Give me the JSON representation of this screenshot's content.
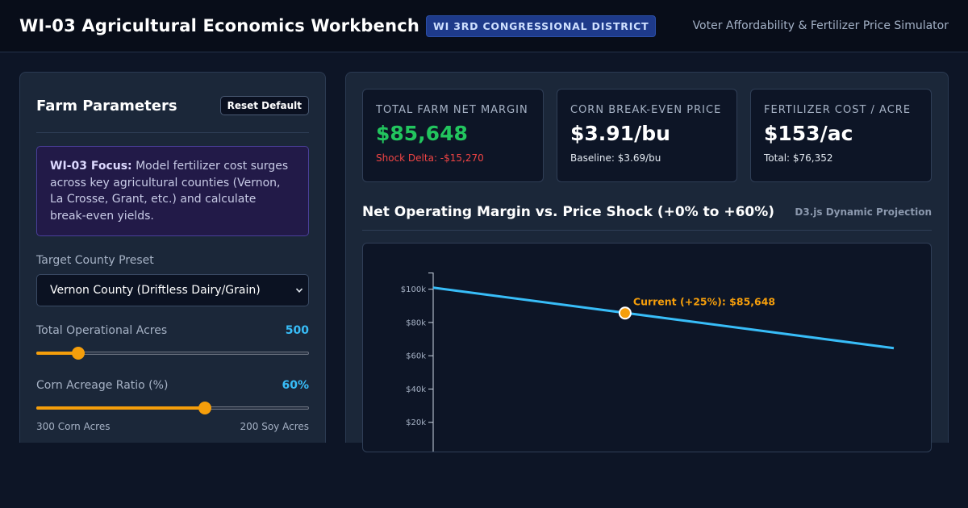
{
  "header": {
    "title": "WI-03 Agricultural Economics Workbench",
    "badge": "WI 3RD CONGRESSIONAL DISTRICT",
    "subtitle": "Voter Affordability & Fertilizer Price Simulator"
  },
  "params": {
    "title": "Farm Parameters",
    "reset_label": "Reset Default",
    "focus_lead": "WI-03 Focus:",
    "focus_text": " Model fertilizer cost surges across key agricultural counties (Vernon, La Crosse, Grant, etc.) and calculate break-even yields.",
    "preset_label": "Target County Preset",
    "preset_value": "Vernon County (Driftless Dairy/Grain)",
    "acres_label": "Total Operational Acres",
    "acres_value": "500",
    "acres_fraction": 0.155,
    "corn_label": "Corn Acreage Ratio (%)",
    "corn_value": "60%",
    "corn_fraction": 0.618,
    "corn_acres": "300 Corn Acres",
    "soy_acres": "200 Soy Acres"
  },
  "kpis": [
    {
      "label": "TOTAL FARM NET MARGIN",
      "value": "$85,648",
      "sub": "Shock Delta: -$15,270"
    },
    {
      "label": "CORN BREAK-EVEN PRICE",
      "value": "$3.91/bu",
      "sub": "Baseline: $3.69/bu"
    },
    {
      "label": "FERTILIZER COST / ACRE",
      "value": "$153/ac",
      "sub": "Total: $76,352"
    }
  ],
  "chart": {
    "heading": "Net Operating Margin vs. Price Shock (+0% to +60%)",
    "tag": "D3.js Dynamic Projection"
  },
  "colors": {
    "accent_line": "#38bdf8",
    "current_marker": "#f59e0b",
    "positive": "#22c55e",
    "negative": "#ef4444"
  },
  "chart_data": {
    "type": "line",
    "x": [
      0,
      60
    ],
    "series": [
      {
        "values": [
          100918,
          64558
        ]
      }
    ],
    "ylim": [
      0,
      110000
    ],
    "y_ticks": [
      20000,
      40000,
      60000,
      80000,
      100000
    ],
    "y_tick_labels": [
      "$20k",
      "$40k",
      "$60k",
      "$80k",
      "$100k"
    ],
    "annotation": {
      "x": 25,
      "y": 85648,
      "label": "Current (+25%): $85,648"
    },
    "grid": false
  }
}
